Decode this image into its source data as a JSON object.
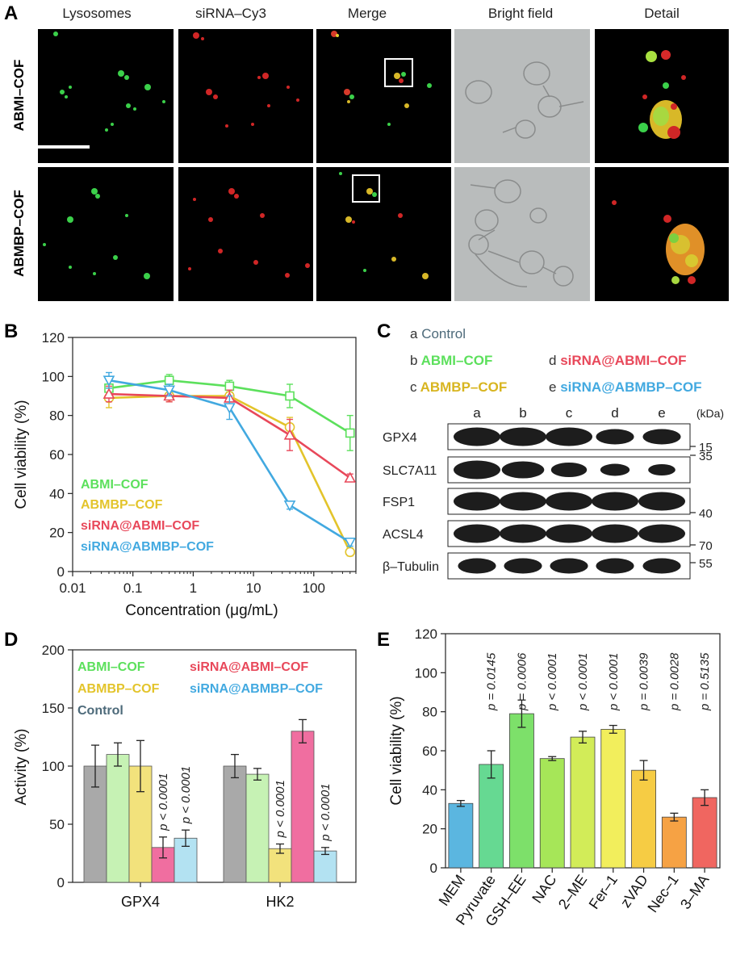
{
  "panels": {
    "A": "A",
    "B": "B",
    "C": "C",
    "D": "D",
    "E": "E"
  },
  "panelA": {
    "columns": [
      "Lysosomes",
      "siRNA–Cy3",
      "Merge",
      "Bright field",
      "Detail"
    ],
    "rows": [
      "ABMI–COF",
      "ABMBP–COF"
    ]
  },
  "panelB": {
    "chart_data": {
      "type": "line",
      "xlabel": "Concentration (μg/mL)",
      "ylabel": "Cell viability (%)",
      "xscale": "log",
      "xlim": [
        0.01,
        500
      ],
      "ylim": [
        0,
        120
      ],
      "x_ticks": [
        "0.01",
        "0.1",
        "1",
        "10",
        "100"
      ],
      "y_ticks": [
        "0",
        "20",
        "40",
        "60",
        "80",
        "100",
        "120"
      ],
      "x": [
        0.04,
        0.4,
        4,
        40,
        400
      ],
      "series": [
        {
          "name": "ABMI–COF",
          "color": "#5ce05c",
          "marker": "square",
          "values": [
            94,
            98,
            95,
            90,
            71
          ],
          "errors": [
            4,
            3,
            3,
            6,
            9
          ]
        },
        {
          "name": "ABMBP–COF",
          "color": "#e3c42b",
          "marker": "circle",
          "values": [
            89,
            90,
            90,
            74,
            10
          ],
          "errors": [
            5,
            3,
            3,
            5,
            2
          ]
        },
        {
          "name": "siRNA@ABMI–COF",
          "color": "#e8485a",
          "marker": "triangle-up",
          "values": [
            91,
            90,
            89,
            70,
            48
          ],
          "errors": [
            4,
            3,
            4,
            8,
            2
          ]
        },
        {
          "name": "siRNA@ABMBP–COF",
          "color": "#42a9e0",
          "marker": "triangle-down",
          "values": [
            98,
            93,
            84,
            34,
            15
          ],
          "errors": [
            4,
            3,
            6,
            2,
            2
          ]
        }
      ]
    }
  },
  "panelC": {
    "legend": [
      {
        "key": "a",
        "name": "Control",
        "color": "#4d6a7a"
      },
      {
        "key": "b",
        "name": "ABMI–COF",
        "color": "#5ce05c"
      },
      {
        "key": "c",
        "name": "ABMBP–COF",
        "color": "#d8b520"
      },
      {
        "key": "d",
        "name": "siRNA@ABMI–COF",
        "color": "#e8485a"
      },
      {
        "key": "e",
        "name": "siRNA@ABMBP–COF",
        "color": "#42a9e0"
      }
    ],
    "lanes": [
      "a",
      "b",
      "c",
      "d",
      "e"
    ],
    "unit": "(kDa)",
    "blots": [
      {
        "name": "GPX4",
        "kda": "15"
      },
      {
        "name": "SLC7A11",
        "kda": "35"
      },
      {
        "name": "FSP1",
        "kda": "40"
      },
      {
        "name": "ACSL4",
        "kda": "70"
      },
      {
        "name": "β–Tubulin",
        "kda": "55"
      }
    ]
  },
  "panelD": {
    "chart_data": {
      "type": "bar",
      "ylabel": "Activity (%)",
      "ylim": [
        0,
        200
      ],
      "y_ticks": [
        "0",
        "50",
        "100",
        "150",
        "200"
      ],
      "categories": [
        "GPX4",
        "HK2"
      ],
      "series": [
        {
          "name": "Control",
          "color": "#a9a9a9",
          "values": [
            100,
            100
          ],
          "errors": [
            18,
            10
          ]
        },
        {
          "name": "ABMI–COF",
          "color": "#c6f2b4",
          "values": [
            110,
            93
          ],
          "errors": [
            10,
            5
          ]
        },
        {
          "name": "ABMBP–COF",
          "color": "#f2e27c",
          "values": [
            100,
            29
          ],
          "errors": [
            22,
            4
          ]
        },
        {
          "name": "siRNA@ABMI–COF",
          "color": "#f06ea0",
          "values": [
            30,
            130
          ],
          "errors": [
            9,
            10
          ]
        },
        {
          "name": "siRNA@ABMBP–COF",
          "color": "#b3e2f2",
          "values": [
            38,
            27
          ],
          "errors": [
            7,
            3
          ]
        }
      ],
      "annotations": [
        {
          "category": "GPX4",
          "series": "siRNA@ABMI–COF",
          "text": "p < 0.0001"
        },
        {
          "category": "GPX4",
          "series": "siRNA@ABMBP–COF",
          "text": "p < 0.0001"
        },
        {
          "category": "HK2",
          "series": "ABMBP–COF",
          "text": "p < 0.0001"
        },
        {
          "category": "HK2",
          "series": "siRNA@ABMBP–COF",
          "text": "p < 0.0001"
        }
      ],
      "legend_order": [
        "ABMI–COF",
        "ABMBP–COF",
        "Control",
        "siRNA@ABMI–COF",
        "siRNA@ABMBP–COF"
      ],
      "legend_colors": {
        "ABMI–COF": "#5ce05c",
        "ABMBP–COF": "#e3c42b",
        "Control": "#4d6a7a",
        "siRNA@ABMI–COF": "#e8485a",
        "siRNA@ABMBP–COF": "#42a9e0"
      }
    }
  },
  "panelE": {
    "chart_data": {
      "type": "bar",
      "ylabel": "Cell viability (%)",
      "ylim": [
        0,
        120
      ],
      "y_ticks": [
        "0",
        "20",
        "40",
        "60",
        "80",
        "100",
        "120"
      ],
      "categories": [
        "MEM",
        "Pyruvate",
        "GSH–EE",
        "NAC",
        "2–ME",
        "Fer–1",
        "zVAD",
        "Nec–1",
        "3–MA"
      ],
      "values": [
        33,
        53,
        79,
        56,
        67,
        71,
        50,
        26,
        36
      ],
      "errors": [
        1.5,
        7,
        7,
        1,
        3,
        2,
        5,
        2,
        4
      ],
      "colors": [
        "#5bb6e0",
        "#66d992",
        "#7de06a",
        "#a6e658",
        "#d2ec58",
        "#f2ee5c",
        "#f6cc44",
        "#f6a244",
        "#f06660"
      ],
      "p_values": [
        "",
        "p = 0.0145",
        "p = 0.0006",
        "p < 0.0001",
        "p < 0.0001",
        "p < 0.0001",
        "p = 0.0039",
        "p = 0.0028",
        "p = 0.5135"
      ]
    }
  }
}
